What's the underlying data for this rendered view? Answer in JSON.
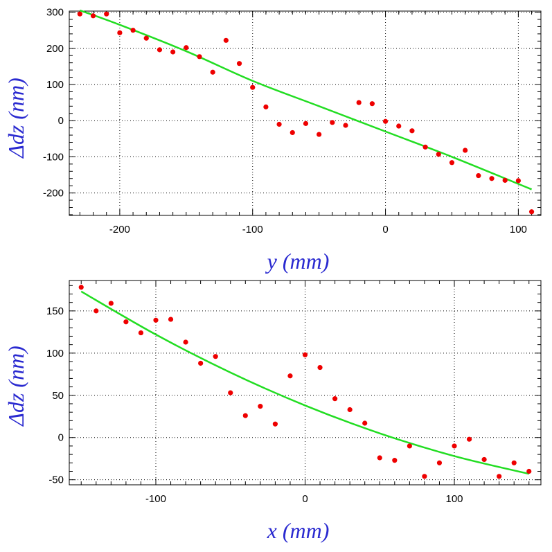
{
  "chart_data": [
    {
      "type": "scatter",
      "xlabel": "y (mm)",
      "ylabel": "Δdz (nm)",
      "xlim": [
        -238,
        117
      ],
      "ylim": [
        -262,
        303
      ],
      "xticks": [
        -200,
        -100,
        0,
        100
      ],
      "yticks": [
        -200,
        -100,
        0,
        100,
        200,
        300
      ],
      "xminor": 10,
      "yminor": 20,
      "grid": true,
      "colors": {
        "points": "#ee0000",
        "fit": "#22dd22",
        "axis_title": "#2a2ad0"
      },
      "series": [
        {
          "x": [
            -230,
            -220,
            -210,
            -200,
            -190,
            -180,
            -170,
            -160,
            -150,
            -140,
            -130,
            -120,
            -110,
            -100,
            -90,
            -80,
            -70,
            -60,
            -50,
            -40,
            -30,
            -20,
            -10,
            0,
            10,
            20,
            30,
            40,
            50,
            60,
            70,
            80,
            90,
            100,
            110
          ],
          "y": [
            295,
            290,
            295,
            243,
            250,
            228,
            196,
            190,
            202,
            177,
            134,
            222,
            158,
            92,
            38,
            -10,
            -33,
            -8,
            -38,
            -5,
            -13,
            50,
            47,
            -2,
            -15,
            -28,
            -73,
            -93,
            -116,
            -82,
            -152,
            -160,
            -165,
            -166,
            -252
          ]
        }
      ],
      "fit": {
        "x": [
          -230,
          -200,
          -150,
          -100,
          -50,
          0,
          50,
          110
        ],
        "y": [
          305,
          265,
          192,
          110,
          40,
          -30,
          -100,
          -190
        ]
      }
    },
    {
      "type": "scatter",
      "xlabel": "x (mm)",
      "ylabel": "Δdz (nm)",
      "xlim": [
        -158,
        158
      ],
      "ylim": [
        -56,
        186
      ],
      "xticks": [
        -100,
        0,
        100
      ],
      "yticks": [
        -50,
        0,
        50,
        100,
        150
      ],
      "xminor": 10,
      "yminor": 10,
      "grid": true,
      "colors": {
        "points": "#ee0000",
        "fit": "#22dd22",
        "axis_title": "#2a2ad0"
      },
      "series": [
        {
          "x": [
            -150,
            -140,
            -130,
            -120,
            -110,
            -100,
            -90,
            -80,
            -70,
            -60,
            -50,
            -40,
            -30,
            -20,
            -10,
            0,
            10,
            20,
            30,
            40,
            50,
            60,
            70,
            80,
            90,
            100,
            110,
            120,
            130,
            140,
            150
          ],
          "y": [
            178,
            150,
            159,
            137,
            124,
            139,
            140,
            113,
            88,
            96,
            53,
            26,
            37,
            16,
            73,
            98,
            83,
            46,
            33,
            17,
            -24,
            -27,
            -10,
            -46,
            -30,
            -10,
            -2,
            -26,
            -46,
            -30,
            -40
          ]
        }
      ],
      "fit": {
        "x": [
          -150,
          -100,
          -50,
          0,
          50,
          100,
          150
        ],
        "y": [
          173,
          122,
          77,
          38,
          5,
          -22,
          -43
        ]
      }
    }
  ]
}
